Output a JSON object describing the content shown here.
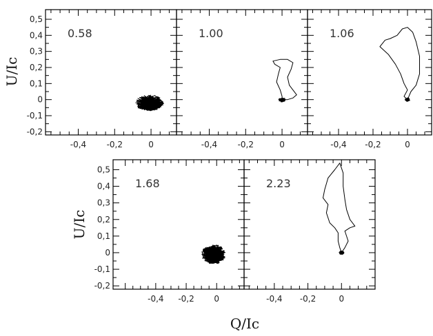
{
  "y_axis_title": "U/Ic",
  "x_axis_title": "Q/Ic",
  "x_tick_labels": [
    "-0,4",
    "-0,2",
    "0"
  ],
  "y_tick_labels": [
    "-0,2",
    "-0,1",
    "0",
    "0,1",
    "0,2",
    "0,3",
    "0,4",
    "0,5"
  ],
  "chart_data": [
    {
      "type": "line",
      "label": "0.58",
      "xlim": [
        -0.58,
        0.14
      ],
      "ylim": [
        -0.22,
        0.56
      ],
      "x_ticks": [
        -0.4,
        -0.2,
        0
      ],
      "y_ticks": [
        -0.2,
        -0.1,
        0,
        0.1,
        0.2,
        0.3,
        0.4,
        0.5
      ],
      "cluster": {
        "center": [
          -0.01,
          -0.02
        ],
        "spread": [
          0.08,
          0.05
        ]
      },
      "path": []
    },
    {
      "type": "line",
      "label": "1.00",
      "xlim": [
        -0.58,
        0.14
      ],
      "ylim": [
        -0.22,
        0.56
      ],
      "x_ticks": [
        -0.4,
        -0.2,
        0
      ],
      "y_ticks": [
        -0.2,
        -0.1,
        0,
        0.1,
        0.2,
        0.3,
        0.4,
        0.5
      ],
      "cluster": {
        "center": [
          0.0,
          0.0
        ],
        "spread": [
          0.02,
          0.015
        ]
      },
      "path": [
        [
          0,
          0
        ],
        [
          0.03,
          0.0
        ],
        [
          0.06,
          0.01
        ],
        [
          0.08,
          0.03
        ],
        [
          0.06,
          0.06
        ],
        [
          0.04,
          0.09
        ],
        [
          0.03,
          0.14
        ],
        [
          0.05,
          0.19
        ],
        [
          0.06,
          0.23
        ],
        [
          0.03,
          0.25
        ],
        [
          -0.01,
          0.25
        ],
        [
          -0.05,
          0.24
        ],
        [
          -0.04,
          0.22
        ],
        [
          -0.01,
          0.2
        ],
        [
          -0.02,
          0.16
        ],
        [
          -0.03,
          0.11
        ],
        [
          -0.01,
          0.06
        ],
        [
          0.0,
          0.02
        ],
        [
          0,
          0
        ]
      ]
    },
    {
      "type": "line",
      "label": "1.06",
      "xlim": [
        -0.58,
        0.14
      ],
      "ylim": [
        -0.22,
        0.56
      ],
      "x_ticks": [
        -0.4,
        -0.2,
        0
      ],
      "y_ticks": [
        -0.2,
        -0.1,
        0,
        0.1,
        0.2,
        0.3,
        0.4,
        0.5
      ],
      "cluster": {
        "center": [
          0.0,
          0.0
        ],
        "spread": [
          0.015,
          0.012
        ]
      },
      "path": [
        [
          0,
          0
        ],
        [
          0.02,
          0.05
        ],
        [
          0.05,
          0.09
        ],
        [
          0.07,
          0.16
        ],
        [
          0.07,
          0.27
        ],
        [
          0.05,
          0.36
        ],
        [
          0.03,
          0.42
        ],
        [
          0.0,
          0.45
        ],
        [
          -0.03,
          0.44
        ],
        [
          -0.06,
          0.4
        ],
        [
          -0.1,
          0.38
        ],
        [
          -0.13,
          0.37
        ],
        [
          -0.16,
          0.33
        ],
        [
          -0.11,
          0.28
        ],
        [
          -0.07,
          0.22
        ],
        [
          -0.04,
          0.16
        ],
        [
          -0.02,
          0.1
        ],
        [
          0.0,
          0.06
        ],
        [
          -0.02,
          0.02
        ],
        [
          0,
          0
        ]
      ]
    },
    {
      "type": "line",
      "label": "1.68",
      "xlim": [
        -0.68,
        0.18
      ],
      "ylim": [
        -0.22,
        0.56
      ],
      "x_ticks": [
        -0.4,
        -0.2,
        0
      ],
      "y_ticks": [
        -0.2,
        -0.1,
        0,
        0.1,
        0.2,
        0.3,
        0.4,
        0.5
      ],
      "cluster": {
        "center": [
          -0.02,
          -0.01
        ],
        "spread": [
          0.08,
          0.06
        ]
      },
      "path": []
    },
    {
      "type": "line",
      "label": "2.23",
      "xlim": [
        -0.58,
        0.2
      ],
      "ylim": [
        -0.22,
        0.56
      ],
      "x_ticks": [
        -0.4,
        -0.2,
        0
      ],
      "y_ticks": [
        -0.2,
        -0.1,
        0,
        0.1,
        0.2,
        0.3,
        0.4,
        0.5
      ],
      "cluster": {
        "center": [
          0.0,
          0.0
        ],
        "spread": [
          0.015,
          0.012
        ]
      },
      "path": [
        [
          0,
          0
        ],
        [
          0.02,
          0.03
        ],
        [
          0.04,
          0.07
        ],
        [
          0.03,
          0.1
        ],
        [
          0.02,
          0.13
        ],
        [
          0.05,
          0.15
        ],
        [
          0.08,
          0.16
        ],
        [
          0.05,
          0.2
        ],
        [
          0.03,
          0.26
        ],
        [
          0.02,
          0.32
        ],
        [
          0.01,
          0.4
        ],
        [
          0.01,
          0.48
        ],
        [
          -0.01,
          0.54
        ],
        [
          -0.04,
          0.5
        ],
        [
          -0.08,
          0.45
        ],
        [
          -0.1,
          0.38
        ],
        [
          -0.11,
          0.33
        ],
        [
          -0.08,
          0.29
        ],
        [
          -0.09,
          0.24
        ],
        [
          -0.07,
          0.18
        ],
        [
          -0.04,
          0.15
        ],
        [
          -0.02,
          0.12
        ],
        [
          -0.02,
          0.07
        ],
        [
          -0.01,
          0.03
        ],
        [
          0,
          0
        ]
      ]
    }
  ]
}
